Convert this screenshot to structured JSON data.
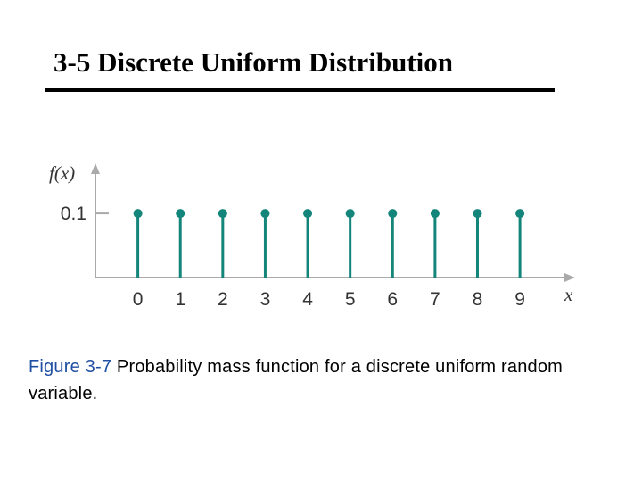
{
  "slide": {
    "title": "3-5 Discrete Uniform Distribution"
  },
  "caption": {
    "label": "Figure 3-7",
    "text": "Probability mass function for a discrete uniform random variable."
  },
  "chart_data": {
    "type": "stem",
    "ylabel": "f(x)",
    "xlabel": "x",
    "x": [
      0,
      1,
      2,
      3,
      4,
      5,
      6,
      7,
      8,
      9
    ],
    "values": [
      0.1,
      0.1,
      0.1,
      0.1,
      0.1,
      0.1,
      0.1,
      0.1,
      0.1,
      0.1
    ],
    "color": "#13857a",
    "xlim": [
      -1,
      10.3
    ],
    "ylim": [
      0,
      0.178
    ],
    "xticks": [
      0,
      1,
      2,
      3,
      4,
      5,
      6,
      7,
      8,
      9
    ],
    "yticks": [
      0.1
    ]
  }
}
